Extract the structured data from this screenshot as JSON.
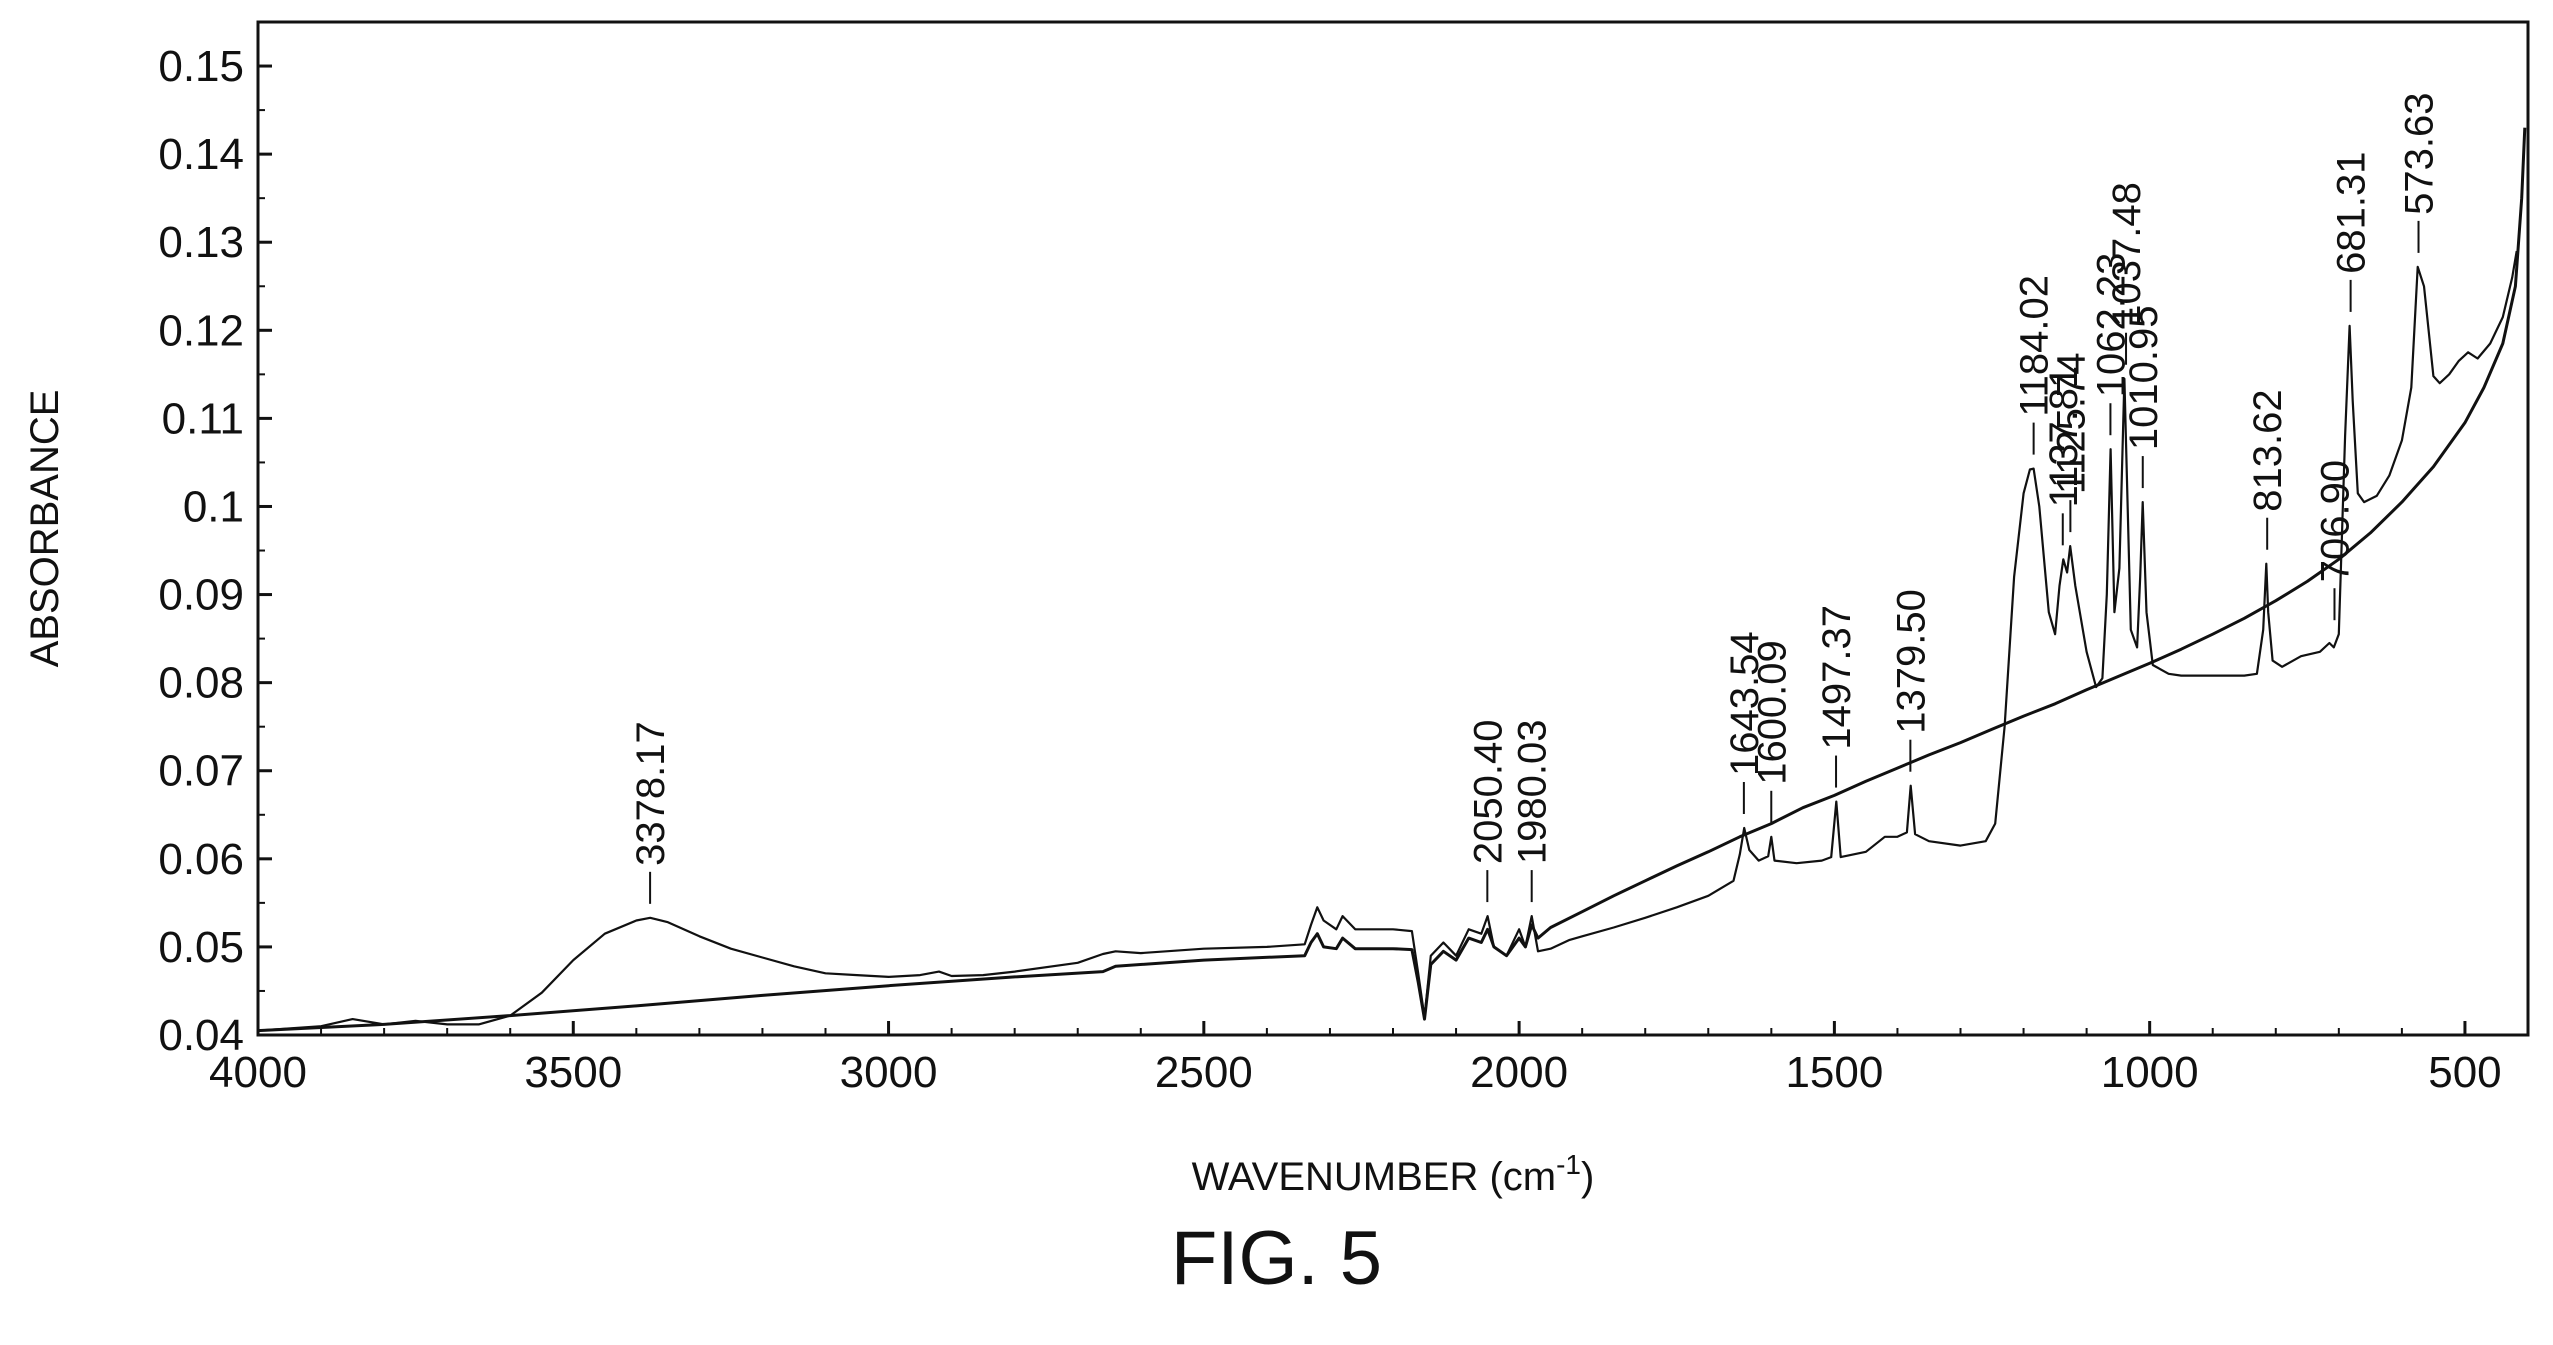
{
  "figure_label": "FIG. 5",
  "chart_data": {
    "type": "line",
    "xlabel": "WAVENUMBER (cm",
    "xlabel_sup": "-1",
    "xlabel_close": ")",
    "ylabel": "ABSORBANCE",
    "xlim": [
      4000,
      400
    ],
    "ylim": [
      0.04,
      0.155
    ],
    "x_ticks": [
      4000,
      3500,
      3000,
      2500,
      2000,
      1500,
      1000,
      500
    ],
    "x_tick_labels": [
      "4000",
      "3500",
      "3000",
      "2500",
      "2000",
      "1500",
      "1000",
      "500"
    ],
    "y_ticks": [
      0.04,
      0.05,
      0.06,
      0.07,
      0.08,
      0.09,
      0.1,
      0.11,
      0.12,
      0.13,
      0.14,
      0.15
    ],
    "y_tick_labels": [
      "0.04",
      "0.05",
      "0.06",
      "0.07",
      "0.08",
      "0.09",
      "0.1",
      "0.11",
      "0.12",
      "0.13",
      "0.14",
      "0.15"
    ],
    "grid": false,
    "series": [
      {
        "color": "#111111",
        "points": [
          [
            4000,
            0.0405
          ],
          [
            3900,
            0.041
          ],
          [
            3850,
            0.0418
          ],
          [
            3800,
            0.0412
          ],
          [
            3750,
            0.0416
          ],
          [
            3700,
            0.0412
          ],
          [
            3650,
            0.0412
          ],
          [
            3600,
            0.0422
          ],
          [
            3550,
            0.0448
          ],
          [
            3500,
            0.0485
          ],
          [
            3450,
            0.0515
          ],
          [
            3400,
            0.053
          ],
          [
            3378,
            0.0533
          ],
          [
            3350,
            0.0528
          ],
          [
            3300,
            0.0512
          ],
          [
            3250,
            0.0498
          ],
          [
            3200,
            0.0488
          ],
          [
            3150,
            0.0478
          ],
          [
            3100,
            0.047
          ],
          [
            3050,
            0.0468
          ],
          [
            3000,
            0.0466
          ],
          [
            2950,
            0.0468
          ],
          [
            2920,
            0.0472
          ],
          [
            2900,
            0.0467
          ],
          [
            2850,
            0.0468
          ],
          [
            2800,
            0.0472
          ],
          [
            2700,
            0.0482
          ],
          [
            2660,
            0.0492
          ],
          [
            2640,
            0.0495
          ],
          [
            2600,
            0.0493
          ],
          [
            2500,
            0.0498
          ],
          [
            2400,
            0.05
          ],
          [
            2340,
            0.0503
          ],
          [
            2330,
            0.0525
          ],
          [
            2320,
            0.0545
          ],
          [
            2310,
            0.053
          ],
          [
            2290,
            0.052
          ],
          [
            2280,
            0.0535
          ],
          [
            2260,
            0.052
          ],
          [
            2200,
            0.052
          ],
          [
            2170,
            0.0518
          ],
          [
            2160,
            0.047
          ],
          [
            2150,
            0.042
          ],
          [
            2140,
            0.049
          ],
          [
            2120,
            0.0505
          ],
          [
            2100,
            0.049
          ],
          [
            2080,
            0.052
          ],
          [
            2060,
            0.0515
          ],
          [
            2050,
            0.0535
          ],
          [
            2040,
            0.05
          ],
          [
            2020,
            0.049
          ],
          [
            2000,
            0.052
          ],
          [
            1990,
            0.05
          ],
          [
            1980,
            0.0535
          ],
          [
            1970,
            0.0495
          ],
          [
            1950,
            0.0498
          ],
          [
            1920,
            0.0508
          ],
          [
            1900,
            0.0512
          ],
          [
            1850,
            0.0522
          ],
          [
            1800,
            0.0533
          ],
          [
            1750,
            0.0545
          ],
          [
            1700,
            0.0558
          ],
          [
            1660,
            0.0575
          ],
          [
            1650,
            0.0605
          ],
          [
            1643,
            0.0635
          ],
          [
            1635,
            0.061
          ],
          [
            1620,
            0.0598
          ],
          [
            1605,
            0.0603
          ],
          [
            1600,
            0.0625
          ],
          [
            1595,
            0.0598
          ],
          [
            1560,
            0.0595
          ],
          [
            1520,
            0.0598
          ],
          [
            1505,
            0.0602
          ],
          [
            1497,
            0.0665
          ],
          [
            1490,
            0.0602
          ],
          [
            1450,
            0.0608
          ],
          [
            1420,
            0.0625
          ],
          [
            1400,
            0.0625
          ],
          [
            1385,
            0.063
          ],
          [
            1379,
            0.0683
          ],
          [
            1372,
            0.0628
          ],
          [
            1350,
            0.062
          ],
          [
            1300,
            0.0615
          ],
          [
            1260,
            0.062
          ],
          [
            1245,
            0.064
          ],
          [
            1230,
            0.075
          ],
          [
            1215,
            0.092
          ],
          [
            1200,
            0.1015
          ],
          [
            1190,
            0.1042
          ],
          [
            1184,
            0.1043
          ],
          [
            1175,
            0.1
          ],
          [
            1160,
            0.088
          ],
          [
            1150,
            0.0855
          ],
          [
            1143,
            0.091
          ],
          [
            1137,
            0.094
          ],
          [
            1131,
            0.0925
          ],
          [
            1126,
            0.0955
          ],
          [
            1118,
            0.091
          ],
          [
            1100,
            0.0835
          ],
          [
            1085,
            0.0795
          ],
          [
            1075,
            0.0805
          ],
          [
            1068,
            0.09
          ],
          [
            1062,
            0.1065
          ],
          [
            1056,
            0.088
          ],
          [
            1048,
            0.093
          ],
          [
            1040,
            0.1145
          ],
          [
            1037,
            0.106
          ],
          [
            1030,
            0.086
          ],
          [
            1020,
            0.084
          ],
          [
            1015,
            0.092
          ],
          [
            1011,
            0.1005
          ],
          [
            1005,
            0.088
          ],
          [
            995,
            0.082
          ],
          [
            970,
            0.081
          ],
          [
            950,
            0.0808
          ],
          [
            900,
            0.0808
          ],
          [
            850,
            0.0808
          ],
          [
            830,
            0.081
          ],
          [
            820,
            0.086
          ],
          [
            815,
            0.0935
          ],
          [
            812,
            0.088
          ],
          [
            805,
            0.0825
          ],
          [
            790,
            0.0818
          ],
          [
            760,
            0.083
          ],
          [
            730,
            0.0835
          ],
          [
            715,
            0.0845
          ],
          [
            708,
            0.084
          ],
          [
            700,
            0.0855
          ],
          [
            690,
            0.108
          ],
          [
            683,
            0.1205
          ],
          [
            678,
            0.112
          ],
          [
            670,
            0.1015
          ],
          [
            660,
            0.1005
          ],
          [
            640,
            0.1012
          ],
          [
            620,
            0.1035
          ],
          [
            600,
            0.1075
          ],
          [
            585,
            0.1135
          ],
          [
            575,
            0.1272
          ],
          [
            565,
            0.125
          ],
          [
            550,
            0.1148
          ],
          [
            540,
            0.114
          ],
          [
            525,
            0.115
          ],
          [
            510,
            0.1165
          ],
          [
            495,
            0.1175
          ],
          [
            480,
            0.1168
          ],
          [
            460,
            0.1185
          ],
          [
            440,
            0.1215
          ],
          [
            425,
            0.126
          ],
          [
            418,
            0.129
          ]
        ]
      },
      {
        "color": "#111111",
        "points": [
          [
            4000,
            0.0405
          ],
          [
            3800,
            0.0412
          ],
          [
            3600,
            0.0422
          ],
          [
            3400,
            0.0433
          ],
          [
            3200,
            0.0445
          ],
          [
            3000,
            0.0456
          ],
          [
            2800,
            0.0466
          ],
          [
            2660,
            0.0472
          ],
          [
            2640,
            0.0478
          ],
          [
            2500,
            0.0485
          ],
          [
            2340,
            0.049
          ],
          [
            2330,
            0.0505
          ],
          [
            2320,
            0.0515
          ],
          [
            2310,
            0.05
          ],
          [
            2290,
            0.0498
          ],
          [
            2280,
            0.051
          ],
          [
            2260,
            0.0498
          ],
          [
            2200,
            0.0498
          ],
          [
            2170,
            0.0497
          ],
          [
            2160,
            0.046
          ],
          [
            2150,
            0.0418
          ],
          [
            2140,
            0.048
          ],
          [
            2120,
            0.0495
          ],
          [
            2100,
            0.0485
          ],
          [
            2080,
            0.051
          ],
          [
            2060,
            0.0505
          ],
          [
            2050,
            0.052
          ],
          [
            2040,
            0.05
          ],
          [
            2020,
            0.049
          ],
          [
            2000,
            0.051
          ],
          [
            1990,
            0.05
          ],
          [
            1980,
            0.0525
          ],
          [
            1970,
            0.051
          ],
          [
            1950,
            0.0522
          ],
          [
            1900,
            0.054
          ],
          [
            1850,
            0.0558
          ],
          [
            1800,
            0.0575
          ],
          [
            1750,
            0.0592
          ],
          [
            1700,
            0.0608
          ],
          [
            1650,
            0.0625
          ],
          [
            1600,
            0.064
          ],
          [
            1550,
            0.0658
          ],
          [
            1500,
            0.0672
          ],
          [
            1450,
            0.0688
          ],
          [
            1400,
            0.0703
          ],
          [
            1350,
            0.0718
          ],
          [
            1300,
            0.0732
          ],
          [
            1250,
            0.0747
          ],
          [
            1200,
            0.0762
          ],
          [
            1150,
            0.0776
          ],
          [
            1100,
            0.0792
          ],
          [
            1050,
            0.0807
          ],
          [
            1000,
            0.0822
          ],
          [
            950,
            0.0838
          ],
          [
            900,
            0.0855
          ],
          [
            850,
            0.0873
          ],
          [
            800,
            0.0893
          ],
          [
            750,
            0.0915
          ],
          [
            700,
            0.094
          ],
          [
            650,
            0.097
          ],
          [
            600,
            0.1005
          ],
          [
            550,
            0.1045
          ],
          [
            500,
            0.1095
          ],
          [
            470,
            0.1135
          ],
          [
            440,
            0.1185
          ],
          [
            420,
            0.125
          ],
          [
            410,
            0.135
          ],
          [
            405,
            0.143
          ]
        ]
      }
    ],
    "peak_labels": [
      {
        "text": "3378.17",
        "x": 3378.17,
        "y": 0.0533
      },
      {
        "text": "2050.40",
        "x": 2050.4,
        "y": 0.0535
      },
      {
        "text": "1980.03",
        "x": 1980.03,
        "y": 0.0535
      },
      {
        "text": "1643.54",
        "x": 1643.54,
        "y": 0.0635
      },
      {
        "text": "1600.09",
        "x": 1600.09,
        "y": 0.0625
      },
      {
        "text": "1497.37",
        "x": 1497.37,
        "y": 0.0665
      },
      {
        "text": "1379.50",
        "x": 1379.5,
        "y": 0.0683
      },
      {
        "text": "1184.02",
        "x": 1184.02,
        "y": 0.1043
      },
      {
        "text": "1137.81",
        "x": 1137.81,
        "y": 0.094
      },
      {
        "text": "1125.74",
        "x": 1125.74,
        "y": 0.0955
      },
      {
        "text": "1062.23",
        "x": 1062.23,
        "y": 0.1065
      },
      {
        "text": "1037.48",
        "x": 1037.48,
        "y": 0.1145
      },
      {
        "text": "1010.95",
        "x": 1010.95,
        "y": 0.1005
      },
      {
        "text": "813.62",
        "x": 813.62,
        "y": 0.0935
      },
      {
        "text": "706.90",
        "x": 706.9,
        "y": 0.0855
      },
      {
        "text": "681.31",
        "x": 681.31,
        "y": 0.1205
      },
      {
        "text": "573.63",
        "x": 573.63,
        "y": 0.1272
      }
    ]
  }
}
